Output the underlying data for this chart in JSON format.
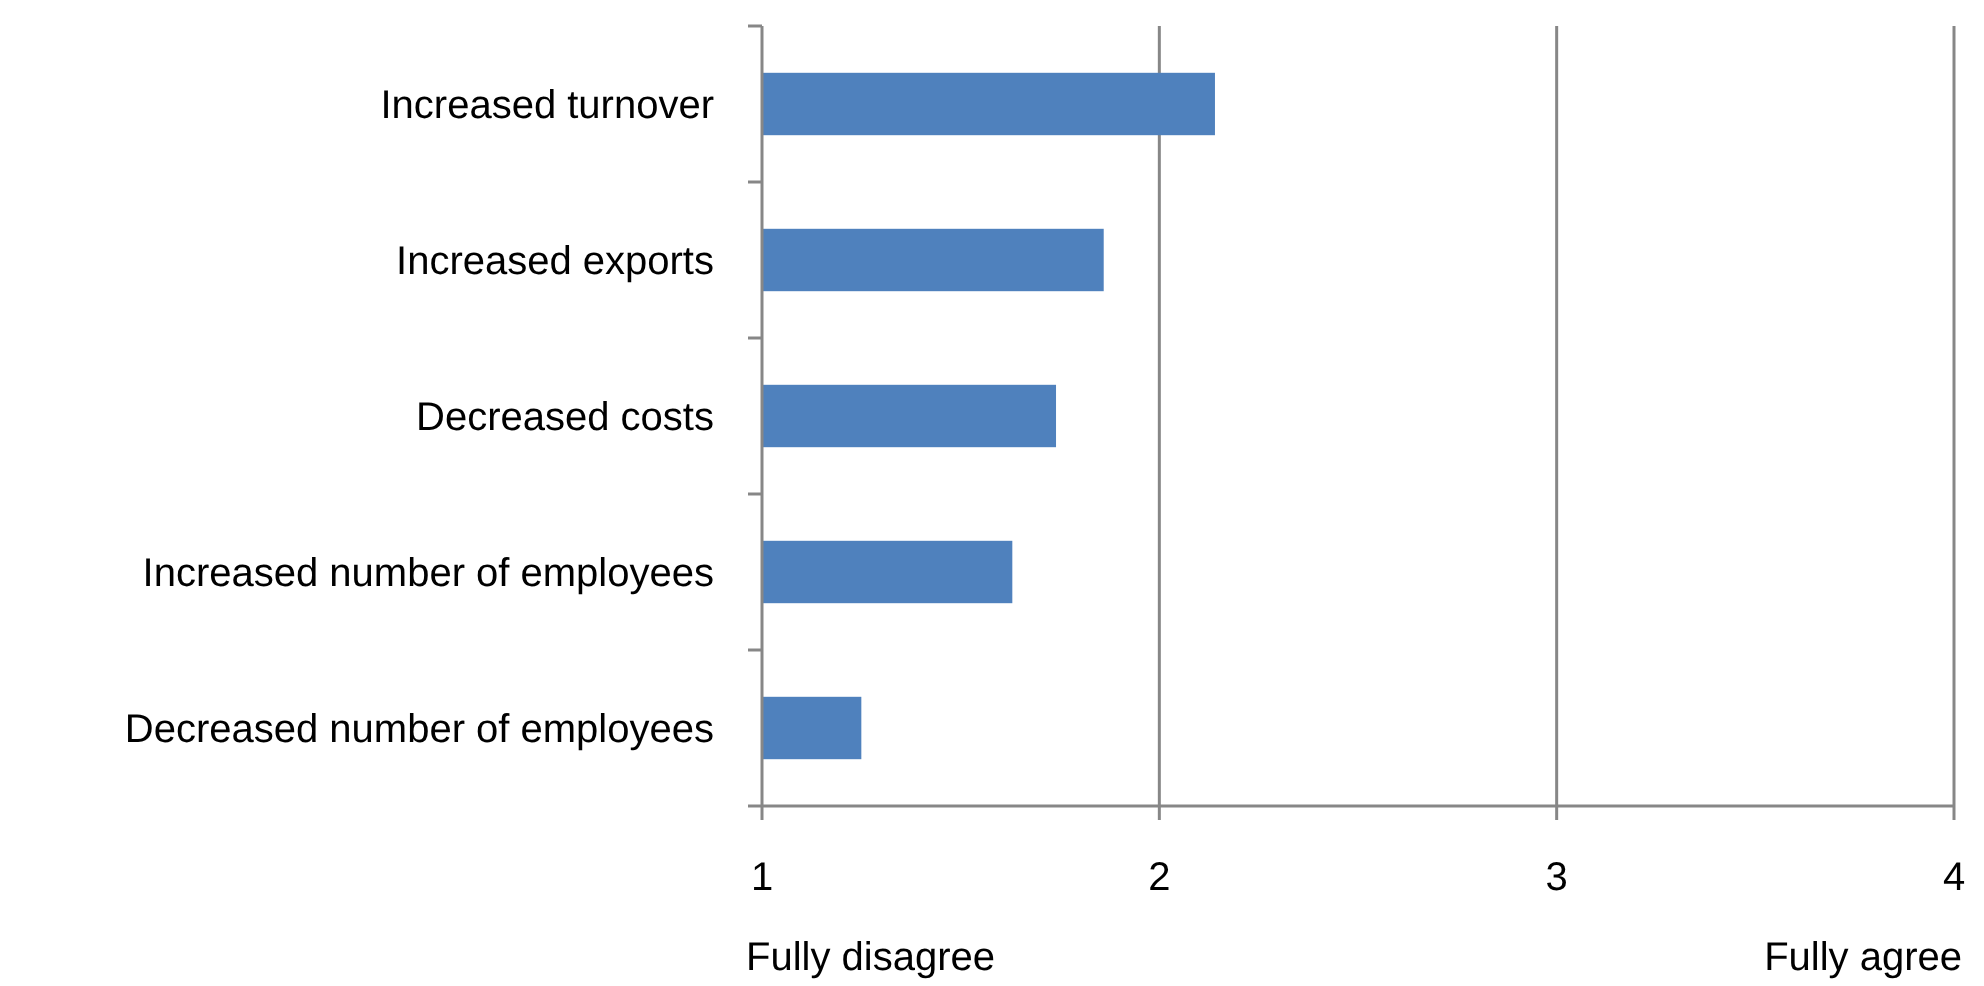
{
  "chart_data": {
    "type": "bar",
    "orientation": "horizontal",
    "categories": [
      "Increased turnover",
      "Increased exports",
      "Decreased costs",
      "Increased number of employees",
      "Decreased number of employees"
    ],
    "values": [
      2.14,
      1.86,
      1.74,
      1.63,
      1.25
    ],
    "color": "#4f81bd",
    "xlim": [
      1,
      4
    ],
    "xticks": [
      1,
      2,
      3,
      4
    ],
    "grid": "x",
    "annotations": [
      "Fully disagree",
      "Fully agree"
    ]
  }
}
